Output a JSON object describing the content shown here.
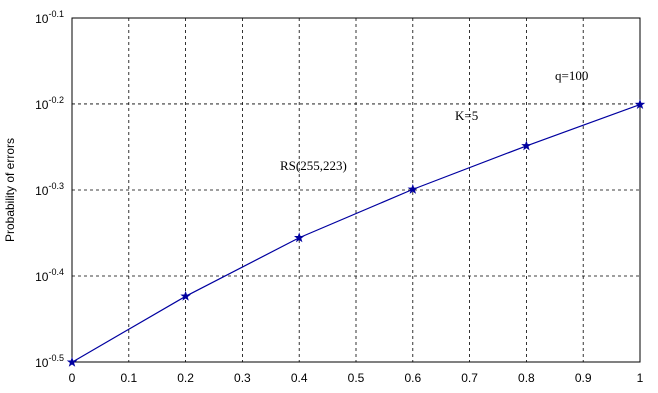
{
  "chart_data": {
    "type": "line",
    "y_label": "Probability of errors",
    "x": [
      0,
      0.2,
      0.4,
      0.6,
      0.8,
      1
    ],
    "series": [
      {
        "name": "RS(255,223)",
        "color": "#0000a0",
        "values": [
          0.316,
          0.377,
          0.441,
          0.502,
          0.564,
          0.63
        ]
      }
    ],
    "xlim": [
      0,
      1
    ],
    "xticks": [
      0,
      0.1,
      0.2,
      0.3,
      0.4,
      0.5,
      0.6,
      0.7,
      0.8,
      0.9,
      1
    ],
    "ylim": [
      0.3162,
      0.7943
    ],
    "yticks": [
      {
        "value": 0.3162,
        "label": "10-0.5"
      },
      {
        "value": 0.3981,
        "label": "10-0.4"
      },
      {
        "value": 0.5012,
        "label": "10-0.3"
      },
      {
        "value": 0.631,
        "label": "10-0.2"
      },
      {
        "value": 0.7943,
        "label": "10-0.1"
      }
    ],
    "log_y": true,
    "grid": true,
    "annotations": [
      "q=100",
      "K=5",
      "RS(255,223)"
    ]
  }
}
